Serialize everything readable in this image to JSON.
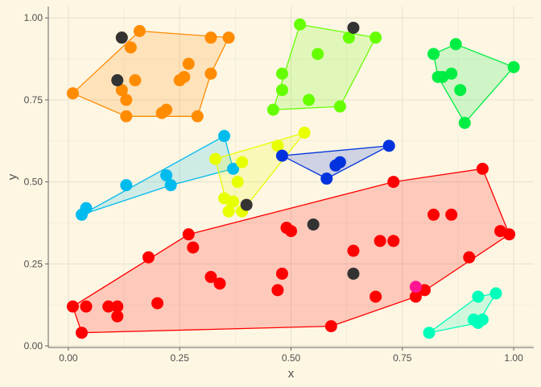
{
  "chart_data": {
    "type": "scatter",
    "title": "",
    "xlabel": "x",
    "ylabel": "y",
    "xlim": [
      -0.045,
      1.045
    ],
    "ylim": [
      -0.005,
      1.035
    ],
    "xticks": [
      0.0,
      0.25,
      0.5,
      0.75,
      1.0
    ],
    "yticks": [
      0.0,
      0.25,
      0.5,
      0.75,
      1.0
    ],
    "xtick_labels": [
      "0.00",
      "0.25",
      "0.50",
      "0.75",
      "1.00"
    ],
    "ytick_labels": [
      "0.00",
      "0.25",
      "0.50",
      "0.75",
      "1.00"
    ],
    "grid": true,
    "legend": "none",
    "background": "#fdf6e3",
    "hull_fill_opacity": 0.18,
    "series": [
      {
        "color": "#ff8c00",
        "points": [
          [
            0.01,
            0.77
          ],
          [
            0.12,
            0.94
          ],
          [
            0.14,
            0.91
          ],
          [
            0.16,
            0.96
          ],
          [
            0.12,
            0.78
          ],
          [
            0.15,
            0.81
          ],
          [
            0.13,
            0.75
          ],
          [
            0.13,
            0.7
          ],
          [
            0.22,
            0.72
          ],
          [
            0.21,
            0.71
          ],
          [
            0.25,
            0.81
          ],
          [
            0.26,
            0.82
          ],
          [
            0.27,
            0.86
          ],
          [
            0.32,
            0.94
          ],
          [
            0.36,
            0.94
          ],
          [
            0.32,
            0.83
          ],
          [
            0.29,
            0.7
          ]
        ],
        "hull": [
          [
            0.01,
            0.77
          ],
          [
            0.16,
            0.96
          ],
          [
            0.36,
            0.94
          ],
          [
            0.32,
            0.83
          ],
          [
            0.29,
            0.7
          ],
          [
            0.13,
            0.7
          ]
        ]
      },
      {
        "color": "#66ff00",
        "points": [
          [
            0.52,
            0.98
          ],
          [
            0.63,
            0.94
          ],
          [
            0.69,
            0.94
          ],
          [
            0.56,
            0.89
          ],
          [
            0.48,
            0.83
          ],
          [
            0.48,
            0.78
          ],
          [
            0.46,
            0.72
          ],
          [
            0.54,
            0.75
          ],
          [
            0.61,
            0.73
          ]
        ],
        "hull": [
          [
            0.52,
            0.98
          ],
          [
            0.69,
            0.94
          ],
          [
            0.61,
            0.73
          ],
          [
            0.46,
            0.72
          ]
        ]
      },
      {
        "color": "#00ee44",
        "points": [
          [
            0.82,
            0.89
          ],
          [
            0.87,
            0.92
          ],
          [
            0.83,
            0.82
          ],
          [
            0.84,
            0.82
          ],
          [
            0.86,
            0.83
          ],
          [
            0.88,
            0.78
          ],
          [
            1.0,
            0.85
          ],
          [
            0.89,
            0.68
          ]
        ],
        "hull": [
          [
            0.82,
            0.89
          ],
          [
            0.87,
            0.92
          ],
          [
            1.0,
            0.85
          ],
          [
            0.89,
            0.68
          ],
          [
            0.83,
            0.82
          ]
        ]
      },
      {
        "color": "#00bbee",
        "points": [
          [
            0.03,
            0.4
          ],
          [
            0.04,
            0.42
          ],
          [
            0.13,
            0.49
          ],
          [
            0.22,
            0.52
          ],
          [
            0.23,
            0.49
          ],
          [
            0.35,
            0.64
          ],
          [
            0.37,
            0.54
          ]
        ],
        "hull": [
          [
            0.03,
            0.4
          ],
          [
            0.35,
            0.64
          ],
          [
            0.37,
            0.54
          ],
          [
            0.23,
            0.49
          ]
        ]
      },
      {
        "color": "#e8ff00",
        "points": [
          [
            0.33,
            0.57
          ],
          [
            0.35,
            0.45
          ],
          [
            0.36,
            0.41
          ],
          [
            0.37,
            0.44
          ],
          [
            0.38,
            0.5
          ],
          [
            0.39,
            0.56
          ],
          [
            0.39,
            0.41
          ],
          [
            0.47,
            0.61
          ],
          [
            0.53,
            0.65
          ]
        ],
        "hull": [
          [
            0.33,
            0.57
          ],
          [
            0.53,
            0.65
          ],
          [
            0.39,
            0.41
          ],
          [
            0.36,
            0.41
          ]
        ]
      },
      {
        "color": "#0033dd",
        "points": [
          [
            0.48,
            0.58
          ],
          [
            0.58,
            0.51
          ],
          [
            0.6,
            0.55
          ],
          [
            0.61,
            0.56
          ],
          [
            0.72,
            0.61
          ]
        ],
        "hull": [
          [
            0.48,
            0.58
          ],
          [
            0.72,
            0.61
          ],
          [
            0.58,
            0.51
          ]
        ]
      },
      {
        "color": "#ff0000",
        "points": [
          [
            0.01,
            0.12
          ],
          [
            0.03,
            0.04
          ],
          [
            0.04,
            0.12
          ],
          [
            0.09,
            0.12
          ],
          [
            0.11,
            0.09
          ],
          [
            0.11,
            0.12
          ],
          [
            0.18,
            0.27
          ],
          [
            0.2,
            0.13
          ],
          [
            0.27,
            0.34
          ],
          [
            0.28,
            0.3
          ],
          [
            0.32,
            0.21
          ],
          [
            0.34,
            0.19
          ],
          [
            0.47,
            0.17
          ],
          [
            0.48,
            0.22
          ],
          [
            0.49,
            0.36
          ],
          [
            0.5,
            0.35
          ],
          [
            0.59,
            0.06
          ],
          [
            0.64,
            0.29
          ],
          [
            0.7,
            0.32
          ],
          [
            0.69,
            0.15
          ],
          [
            0.73,
            0.32
          ],
          [
            0.73,
            0.5
          ],
          [
            0.78,
            0.15
          ],
          [
            0.8,
            0.17
          ],
          [
            0.82,
            0.4
          ],
          [
            0.86,
            0.4
          ],
          [
            0.9,
            0.27
          ],
          [
            0.93,
            0.54
          ],
          [
            0.97,
            0.35
          ],
          [
            0.99,
            0.34
          ]
        ],
        "hull": [
          [
            0.01,
            0.12
          ],
          [
            0.27,
            0.34
          ],
          [
            0.73,
            0.5
          ],
          [
            0.93,
            0.54
          ],
          [
            0.99,
            0.34
          ],
          [
            0.78,
            0.15
          ],
          [
            0.59,
            0.06
          ],
          [
            0.03,
            0.04
          ]
        ]
      },
      {
        "color": "#00ffbb",
        "points": [
          [
            0.81,
            0.04
          ],
          [
            0.92,
            0.15
          ],
          [
            0.96,
            0.16
          ],
          [
            0.91,
            0.08
          ],
          [
            0.92,
            0.07
          ],
          [
            0.93,
            0.08
          ]
        ],
        "hull": [
          [
            0.81,
            0.04
          ],
          [
            0.92,
            0.15
          ],
          [
            0.96,
            0.16
          ],
          [
            0.92,
            0.07
          ]
        ]
      },
      {
        "color": "#333333",
        "points": [
          [
            0.12,
            0.94
          ],
          [
            0.11,
            0.81
          ],
          [
            0.64,
            0.97
          ],
          [
            0.4,
            0.43
          ],
          [
            0.55,
            0.37
          ],
          [
            0.64,
            0.22
          ]
        ]
      },
      {
        "color": "#ff1493",
        "points": [
          [
            0.78,
            0.18
          ]
        ]
      }
    ]
  }
}
